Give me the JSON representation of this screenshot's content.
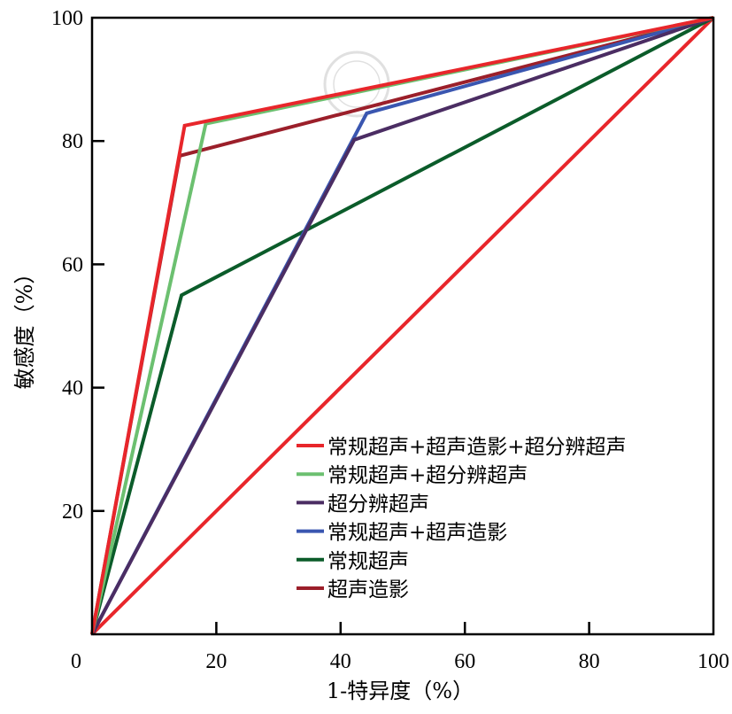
{
  "chart_data": {
    "type": "line",
    "title": "",
    "xlabel": "1-特异度（%）",
    "ylabel": "敏感度（%）",
    "xlim": [
      0,
      100
    ],
    "ylim": [
      0,
      100
    ],
    "xticks": [
      "0",
      "20",
      "40",
      "60",
      "80",
      "100"
    ],
    "yticks": [
      "20",
      "40",
      "60",
      "80",
      "100"
    ],
    "xtick_values": [
      0,
      20,
      40,
      60,
      80,
      100
    ],
    "ytick_values": [
      20,
      40,
      60,
      80,
      100
    ],
    "grid": false,
    "legend_position": "bottom-right",
    "series": [
      {
        "name": "常规超声+超声造影+超分辨超声",
        "color": "#e8262b",
        "points": [
          [
            0,
            0
          ],
          [
            14.9,
            82.5
          ],
          [
            100,
            100
          ]
        ]
      },
      {
        "name": "常规超声+超分辨超声",
        "color": "#6cc070",
        "points": [
          [
            0,
            0
          ],
          [
            18.3,
            82.8
          ],
          [
            100,
            100
          ]
        ]
      },
      {
        "name": "超分辨超声",
        "color": "#4b2d63",
        "points": [
          [
            0,
            0
          ],
          [
            42.2,
            80.2
          ],
          [
            100,
            100
          ]
        ]
      },
      {
        "name": "常规超声+超声造影",
        "color": "#3a56b0",
        "points": [
          [
            0,
            0
          ],
          [
            44.2,
            84.5
          ],
          [
            100,
            100
          ]
        ]
      },
      {
        "name": "常规超声",
        "color": "#0b5c2a",
        "points": [
          [
            0,
            0
          ],
          [
            14.4,
            55.0
          ],
          [
            100,
            100
          ]
        ]
      },
      {
        "name": "超声造影",
        "color": "#9b1f2a",
        "points": [
          [
            0,
            0
          ],
          [
            14.1,
            77.6
          ],
          [
            100,
            100
          ]
        ]
      },
      {
        "name": "",
        "color": "#e8262b",
        "points": [
          [
            0,
            0
          ],
          [
            100,
            100
          ]
        ]
      }
    ]
  }
}
